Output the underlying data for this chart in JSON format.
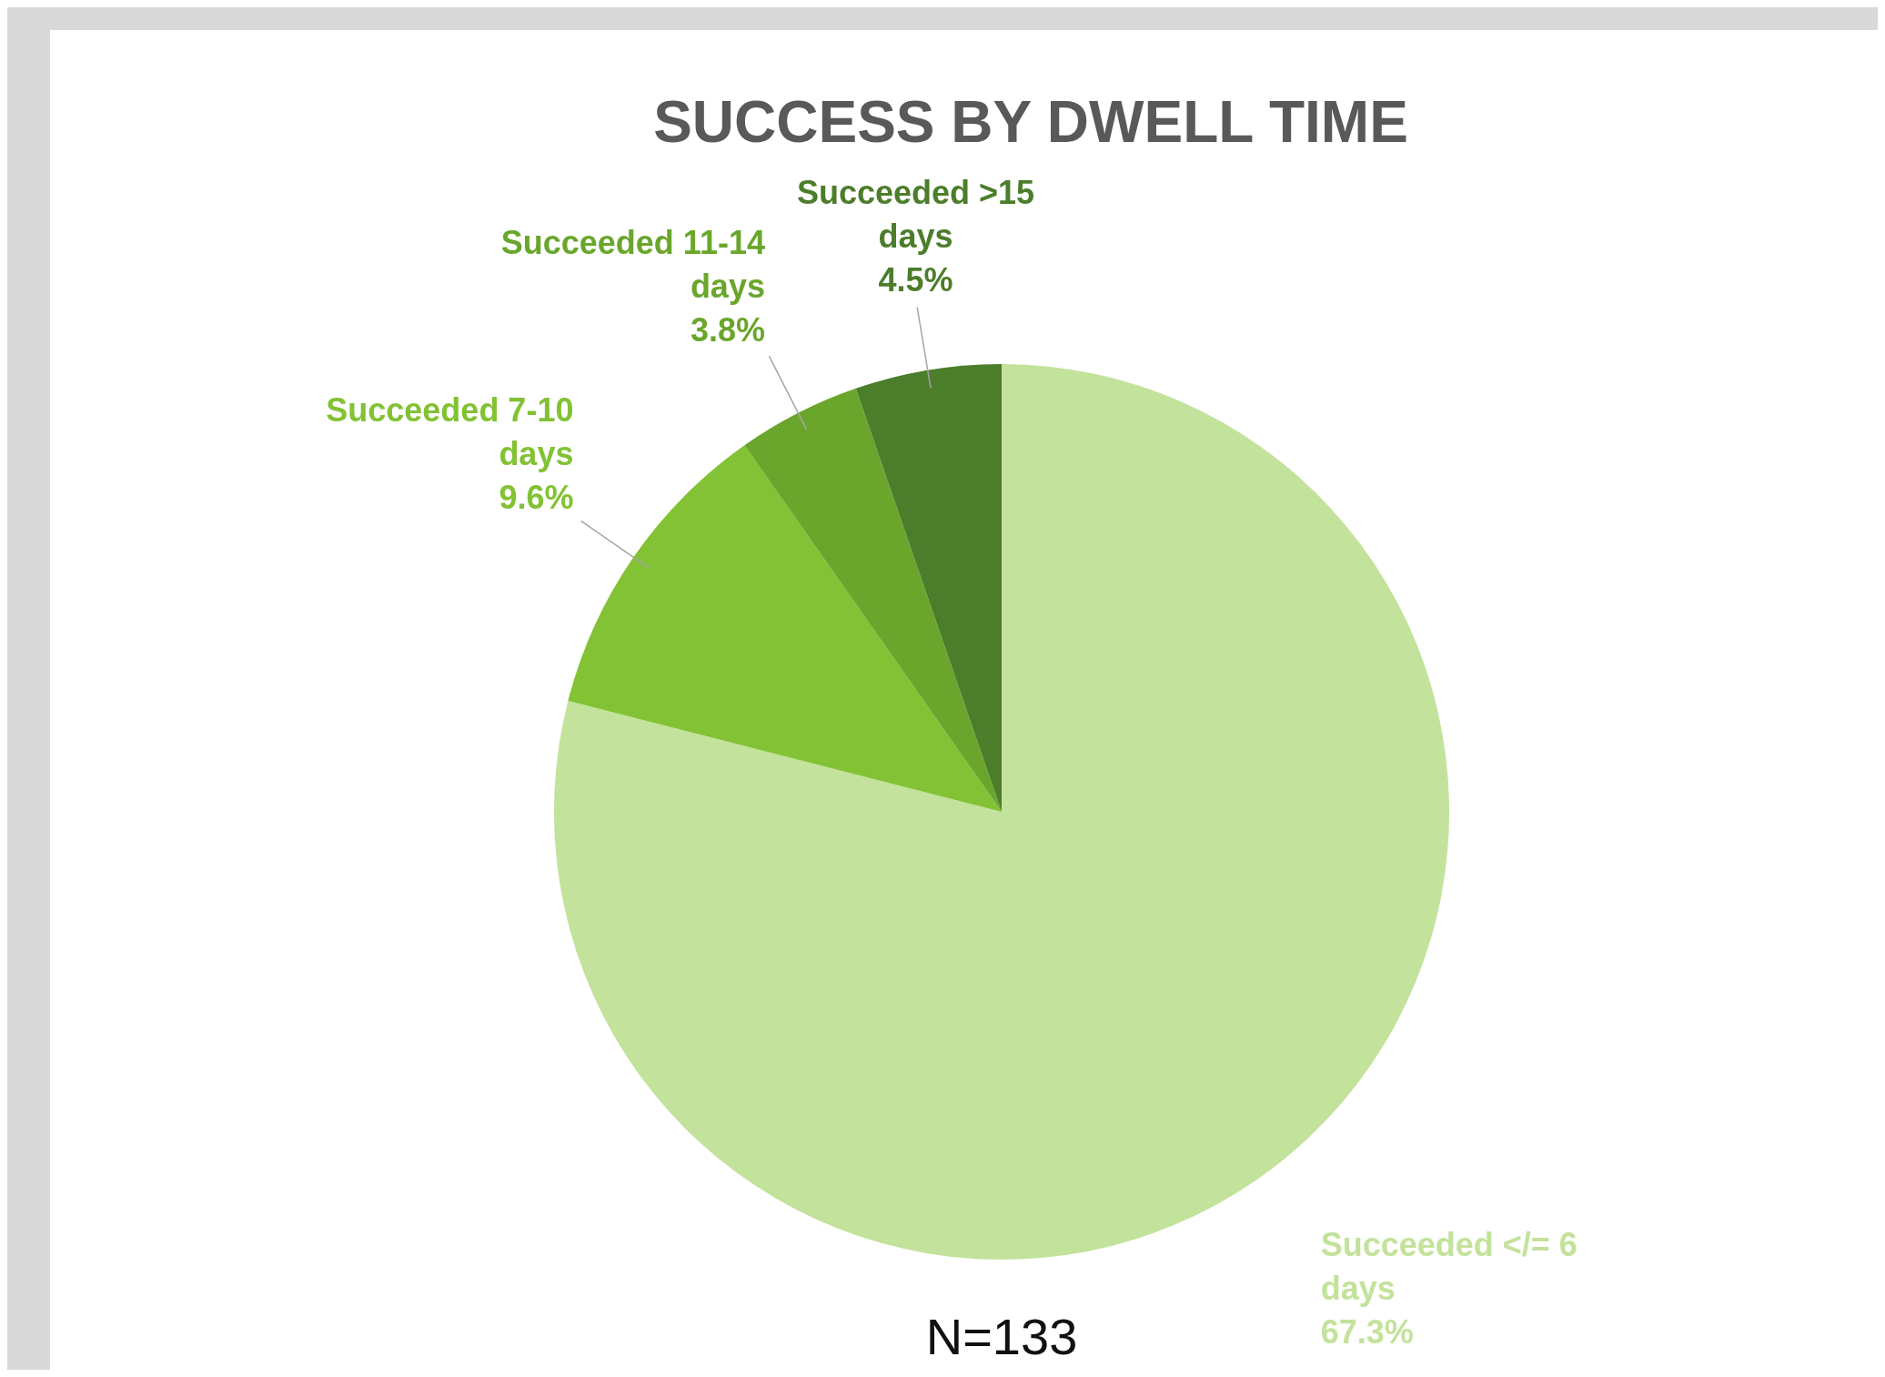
{
  "chart_data": {
    "type": "pie",
    "title": "SUCCESS BY DWELL TIME",
    "categories": [
      "Succeeded </= 6 days",
      "Succeeded 7-10 days",
      "Succeeded 11-14 days",
      "Succeeded >15 days"
    ],
    "values": [
      67.3,
      9.6,
      3.8,
      4.5
    ],
    "colors": [
      "#c3e29b",
      "#82c234",
      "#6aa62c",
      "#4c7d2b"
    ],
    "value_labels": [
      "67.3%",
      "9.6%",
      "3.8%",
      "4.5%"
    ],
    "annotations": [
      "N=133"
    ]
  }
}
